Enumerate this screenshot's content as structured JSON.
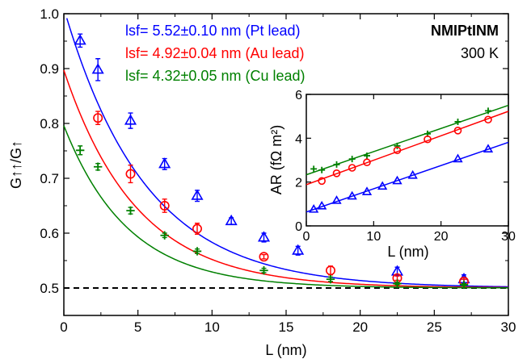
{
  "chart_data": {
    "type": "scatter",
    "sample_label": "NMIPtINM",
    "temperature_label": "300 K",
    "baseline": 0.5,
    "main": {
      "xlabel": "L (nm)",
      "ylabel": "G↑↑/G↑",
      "xlim": [
        0,
        30
      ],
      "ylim": [
        0.45,
        1.0
      ],
      "xticks": [
        0,
        5,
        10,
        15,
        20,
        25,
        30
      ],
      "yticks": [
        0.5,
        0.6,
        0.7,
        0.8,
        0.9,
        1.0
      ],
      "ytick_labels": [
        "0.5",
        "0.6",
        "0.7",
        "0.8",
        "0.9",
        "1.0"
      ],
      "series": [
        {
          "name": "Pt lead",
          "legend_label": "lsf= 5.52±0.10 nm (Pt lead)",
          "color": "#0000ff",
          "marker": "triangle",
          "lsf": 5.52,
          "x": [
            1.1,
            2.3,
            4.5,
            6.8,
            9.0,
            11.3,
            13.5,
            15.8,
            22.5,
            27.0
          ],
          "y": [
            0.951,
            0.898,
            0.805,
            0.726,
            0.668,
            0.622,
            0.592,
            0.568,
            0.53,
            0.516
          ],
          "err": [
            0.012,
            0.02,
            0.014,
            0.01,
            0.01,
            0.006,
            0.008,
            0.008,
            0.008,
            0.008
          ]
        },
        {
          "name": "Au lead",
          "legend_label": "lsf= 4.92±0.04 nm (Au lead)",
          "color": "#ff0000",
          "marker": "circle",
          "lsf": 4.92,
          "x": [
            2.3,
            4.5,
            6.8,
            9.0,
            13.5,
            18.0,
            22.5,
            27.0
          ],
          "y": [
            0.81,
            0.708,
            0.65,
            0.608,
            0.557,
            0.532,
            0.518,
            0.512
          ],
          "err": [
            0.012,
            0.016,
            0.012,
            0.01,
            0.004,
            0.008,
            0.004,
            0.004
          ]
        },
        {
          "name": "Cu lead",
          "legend_label": "lsf= 4.32±0.05 nm (Cu lead)",
          "color": "#008000",
          "marker": "plus",
          "lsf": 4.32,
          "x": [
            1.1,
            2.3,
            4.5,
            6.8,
            9.0,
            13.5,
            18.0,
            22.5,
            27.0
          ],
          "y": [
            0.751,
            0.721,
            0.641,
            0.596,
            0.567,
            0.532,
            0.516,
            0.508,
            0.506
          ],
          "err": [
            0.008,
            0.006,
            0.006,
            0.004,
            0.004,
            0.004,
            0.004,
            0.002,
            0.002
          ]
        }
      ]
    },
    "inset": {
      "xlabel": "L (nm)",
      "ylabel": "AR (fΩ m²)",
      "xlim": [
        0,
        30
      ],
      "ylim": [
        0,
        6
      ],
      "xticks": [
        0,
        10,
        20,
        30
      ],
      "yticks": [
        0,
        2,
        4,
        6
      ],
      "series": [
        {
          "name": "Cu lead",
          "color": "#008000",
          "marker": "plus",
          "x": [
            1.1,
            2.3,
            4.5,
            6.8,
            9.0,
            13.5,
            18.0,
            22.5,
            27.0
          ],
          "y": [
            2.6,
            2.55,
            2.8,
            3.05,
            3.2,
            3.65,
            4.2,
            4.75,
            5.25
          ]
        },
        {
          "name": "Au lead",
          "color": "#ff0000",
          "marker": "circle",
          "x": [
            2.3,
            4.5,
            6.8,
            9.0,
            13.5,
            18.0,
            22.5,
            27.0
          ],
          "y": [
            2.05,
            2.4,
            2.65,
            2.9,
            3.45,
            3.95,
            4.35,
            4.85
          ]
        },
        {
          "name": "Pt lead",
          "color": "#0000ff",
          "marker": "triangle",
          "x": [
            1.1,
            2.3,
            4.5,
            6.8,
            9.0,
            11.3,
            13.5,
            15.8,
            22.5,
            27.0
          ],
          "y": [
            0.75,
            0.9,
            1.15,
            1.35,
            1.55,
            1.8,
            2.05,
            2.3,
            3.05,
            3.5
          ]
        }
      ]
    }
  }
}
